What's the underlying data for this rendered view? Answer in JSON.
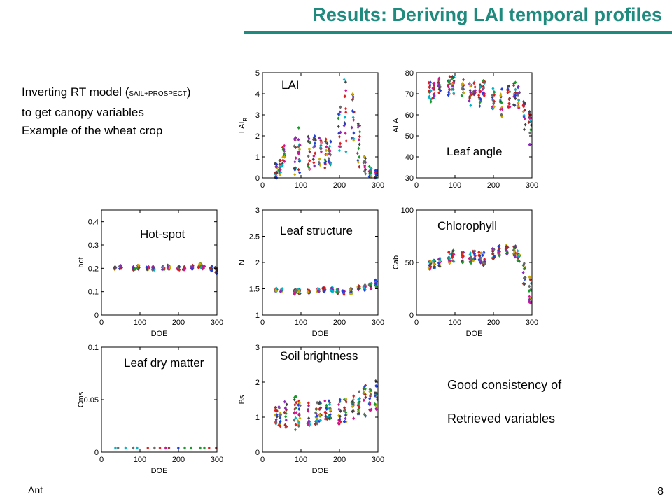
{
  "slide": {
    "title": "Results: Deriving LAI temporal profiles",
    "intro_line1_pre": "Inverting RT model (",
    "intro_line1_small": "SAIL+PROSPECT",
    "intro_line1_post": ")",
    "intro_line2": "to get canopy variables",
    "intro_line3": "Example of the wheat crop",
    "note_line1": "Good consistency of",
    "note_line2": "Retrieved variables",
    "footer_left": "Ant",
    "page_number": "8"
  },
  "series_colors": [
    "#e41a1c",
    "#1f3fd9",
    "#1a9a2a",
    "#8b2ab8",
    "#d1158f",
    "#00b5c8",
    "#c9a800",
    "#444444",
    "#a52a2a",
    "#6a6a6a"
  ],
  "chart_data": [
    {
      "id": "lai",
      "type": "scatter",
      "title": "LAI",
      "xlabel": "",
      "ylabel": "LAI_R",
      "ylabel_main": "LAI",
      "ylabel_sub": "R",
      "xlim": [
        0,
        300
      ],
      "ylim": [
        0,
        5
      ],
      "xticks": [
        0,
        100,
        200,
        300
      ],
      "yticks": [
        0,
        1,
        2,
        3,
        4,
        5
      ],
      "profile": [
        [
          35,
          0.3,
          0.35
        ],
        [
          45,
          0.6,
          0.4
        ],
        [
          55,
          0.9,
          0.45
        ],
        [
          85,
          1.4,
          0.9
        ],
        [
          95,
          1.3,
          0.8
        ],
        [
          120,
          1.2,
          0.6
        ],
        [
          135,
          1.3,
          0.6
        ],
        [
          150,
          1.4,
          0.6
        ],
        [
          165,
          1.2,
          0.55
        ],
        [
          175,
          1.3,
          0.5
        ],
        [
          200,
          2.2,
          0.9
        ],
        [
          215,
          3.0,
          1.3
        ],
        [
          235,
          2.9,
          1.0
        ],
        [
          250,
          1.6,
          0.8
        ],
        [
          265,
          0.6,
          0.3
        ],
        [
          280,
          0.3,
          0.2
        ],
        [
          295,
          0.2,
          0.15
        ]
      ]
    },
    {
      "id": "ala",
      "type": "scatter",
      "title": "Leaf angle",
      "xlabel": "",
      "ylabel": "ALA",
      "xlim": [
        0,
        300
      ],
      "ylim": [
        30,
        80
      ],
      "xticks": [
        0,
        100,
        200,
        300
      ],
      "yticks": [
        30,
        40,
        50,
        60,
        70,
        80
      ],
      "profile": [
        [
          35,
          71,
          4
        ],
        [
          45,
          72,
          3
        ],
        [
          60,
          74,
          3
        ],
        [
          85,
          73,
          4
        ],
        [
          95,
          74,
          3
        ],
        [
          120,
          73,
          3
        ],
        [
          140,
          70,
          4
        ],
        [
          150,
          72,
          3
        ],
        [
          165,
          69,
          4
        ],
        [
          175,
          71,
          4
        ],
        [
          200,
          68,
          4
        ],
        [
          220,
          66,
          5
        ],
        [
          240,
          69,
          4
        ],
        [
          255,
          70,
          4
        ],
        [
          265,
          68,
          4
        ],
        [
          280,
          60,
          5
        ],
        [
          295,
          54,
          6
        ]
      ]
    },
    {
      "id": "hot",
      "type": "scatter",
      "title": "Hot-spot",
      "xlabel": "DOE",
      "ylabel": "hot",
      "xlim": [
        0,
        300
      ],
      "ylim": [
        0,
        0.45
      ],
      "xticks": [
        0,
        100,
        200,
        300
      ],
      "yticks": [
        0,
        0.1,
        0.2,
        0.3,
        0.4
      ],
      "profile": [
        [
          35,
          0.2,
          0.004
        ],
        [
          50,
          0.205,
          0.005
        ],
        [
          85,
          0.2,
          0.006
        ],
        [
          95,
          0.205,
          0.006
        ],
        [
          120,
          0.2,
          0.005
        ],
        [
          135,
          0.2,
          0.005
        ],
        [
          160,
          0.2,
          0.005
        ],
        [
          175,
          0.205,
          0.006
        ],
        [
          200,
          0.2,
          0.005
        ],
        [
          215,
          0.2,
          0.006
        ],
        [
          235,
          0.205,
          0.006
        ],
        [
          255,
          0.21,
          0.008
        ],
        [
          265,
          0.205,
          0.006
        ],
        [
          285,
          0.2,
          0.008
        ],
        [
          298,
          0.19,
          0.01
        ]
      ]
    },
    {
      "id": "n",
      "type": "scatter",
      "title": "Leaf structure",
      "xlabel": "DOE",
      "ylabel": "N",
      "xlim": [
        0,
        300
      ],
      "ylim": [
        1,
        3
      ],
      "xticks": [
        0,
        100,
        200,
        300
      ],
      "yticks": [
        1,
        1.5,
        2,
        2.5,
        3
      ],
      "profile": [
        [
          35,
          1.48,
          0.02
        ],
        [
          50,
          1.47,
          0.02
        ],
        [
          85,
          1.44,
          0.03
        ],
        [
          95,
          1.45,
          0.03
        ],
        [
          120,
          1.45,
          0.02
        ],
        [
          145,
          1.47,
          0.02
        ],
        [
          160,
          1.48,
          0.03
        ],
        [
          180,
          1.48,
          0.03
        ],
        [
          195,
          1.45,
          0.03
        ],
        [
          210,
          1.42,
          0.03
        ],
        [
          230,
          1.45,
          0.04
        ],
        [
          250,
          1.5,
          0.04
        ],
        [
          265,
          1.52,
          0.04
        ],
        [
          280,
          1.55,
          0.04
        ],
        [
          295,
          1.6,
          0.05
        ]
      ]
    },
    {
      "id": "cab",
      "type": "scatter",
      "title": "Chlorophyll",
      "xlabel": "DOE",
      "ylabel": "Cab",
      "xlim": [
        0,
        300
      ],
      "ylim": [
        0,
        100
      ],
      "xticks": [
        0,
        100,
        200,
        300
      ],
      "yticks": [
        0,
        50,
        100
      ],
      "profile": [
        [
          35,
          47,
          3
        ],
        [
          45,
          48,
          3
        ],
        [
          60,
          50,
          3
        ],
        [
          85,
          55,
          4
        ],
        [
          95,
          56,
          4
        ],
        [
          120,
          55,
          4
        ],
        [
          140,
          54,
          4
        ],
        [
          150,
          56,
          4
        ],
        [
          165,
          55,
          4
        ],
        [
          175,
          53,
          5
        ],
        [
          200,
          58,
          4
        ],
        [
          215,
          62,
          4
        ],
        [
          235,
          61,
          4
        ],
        [
          255,
          60,
          4
        ],
        [
          265,
          56,
          4
        ],
        [
          280,
          40,
          8
        ],
        [
          295,
          25,
          12
        ]
      ]
    },
    {
      "id": "cms",
      "type": "scatter",
      "title": "Leaf dry matter",
      "xlabel": "DOE",
      "ylabel": "Cms",
      "xlim": [
        0,
        300
      ],
      "ylim": [
        0,
        0.1
      ],
      "xticks": [
        0,
        100,
        200,
        300
      ],
      "yticks": [
        0,
        0.05,
        0.1
      ],
      "profile": [
        [
          35,
          0.004,
          0
        ],
        [
          45,
          0.004,
          0
        ],
        [
          60,
          0.004,
          0
        ],
        [
          85,
          0.004,
          0
        ],
        [
          95,
          0.004,
          0
        ],
        [
          120,
          0.004,
          0
        ],
        [
          140,
          0.004,
          0
        ],
        [
          150,
          0.004,
          0
        ],
        [
          165,
          0.004,
          0
        ],
        [
          175,
          0.004,
          0
        ],
        [
          200,
          0.004,
          0
        ],
        [
          215,
          0.004,
          0
        ],
        [
          235,
          0.004,
          0
        ],
        [
          255,
          0.004,
          0
        ],
        [
          265,
          0.004,
          0
        ],
        [
          280,
          0.004,
          0
        ],
        [
          295,
          0.004,
          0
        ]
      ]
    },
    {
      "id": "bs",
      "type": "scatter",
      "title": "Soil brightness",
      "xlabel": "DOE",
      "ylabel": "Bs",
      "xlim": [
        0,
        300
      ],
      "ylim": [
        0,
        3
      ],
      "xticks": [
        0,
        100,
        200,
        300
      ],
      "yticks": [
        0,
        1,
        2,
        3
      ],
      "profile": [
        [
          35,
          1.0,
          0.2
        ],
        [
          45,
          1.0,
          0.25
        ],
        [
          60,
          1.1,
          0.3
        ],
        [
          85,
          1.1,
          0.35
        ],
        [
          95,
          1.05,
          0.3
        ],
        [
          120,
          1.1,
          0.25
        ],
        [
          140,
          1.1,
          0.25
        ],
        [
          150,
          1.15,
          0.25
        ],
        [
          165,
          1.2,
          0.25
        ],
        [
          175,
          1.2,
          0.2
        ],
        [
          200,
          1.15,
          0.25
        ],
        [
          215,
          1.2,
          0.25
        ],
        [
          235,
          1.3,
          0.25
        ],
        [
          250,
          1.45,
          0.3
        ],
        [
          265,
          1.5,
          0.35
        ],
        [
          280,
          1.6,
          0.3
        ],
        [
          295,
          1.65,
          0.35
        ]
      ]
    }
  ]
}
